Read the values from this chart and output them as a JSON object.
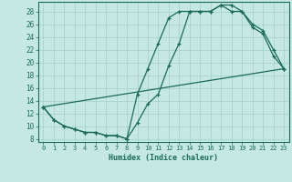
{
  "xlabel": "Humidex (Indice chaleur)",
  "bg_color": "#c5e8e2",
  "grid_color": "#a8d4cc",
  "line_color": "#1a6b5a",
  "xlim": [
    -0.5,
    23.5
  ],
  "ylim": [
    7.5,
    29.5
  ],
  "xticks": [
    0,
    1,
    2,
    3,
    4,
    5,
    6,
    7,
    8,
    9,
    10,
    11,
    12,
    13,
    14,
    15,
    16,
    17,
    18,
    19,
    20,
    21,
    22,
    23
  ],
  "yticks": [
    8,
    10,
    12,
    14,
    16,
    18,
    20,
    22,
    24,
    26,
    28
  ],
  "line1_x": [
    0,
    1,
    2,
    3,
    4,
    5,
    6,
    7,
    8,
    9,
    10,
    11,
    12,
    13,
    14,
    15,
    16,
    17,
    18,
    19,
    20,
    21,
    22,
    23
  ],
  "line1_y": [
    13,
    11,
    10,
    9.5,
    9,
    9,
    8.5,
    8.5,
    8,
    10.5,
    13.5,
    15,
    19.5,
    23,
    28,
    28,
    28,
    29,
    29,
    28,
    25.5,
    24.5,
    21,
    19
  ],
  "line2_x": [
    0,
    1,
    2,
    3,
    4,
    5,
    6,
    7,
    8,
    9,
    10,
    11,
    12,
    13,
    14,
    15,
    16,
    17,
    18,
    19,
    20,
    21,
    22,
    23
  ],
  "line2_y": [
    13,
    11,
    10,
    9.5,
    9,
    9,
    8.5,
    8.5,
    8,
    15,
    19,
    23,
    27,
    28,
    28,
    28,
    28,
    29,
    28,
    28,
    26,
    25,
    22,
    19
  ],
  "line3_x": [
    0,
    23
  ],
  "line3_y": [
    13,
    19
  ]
}
